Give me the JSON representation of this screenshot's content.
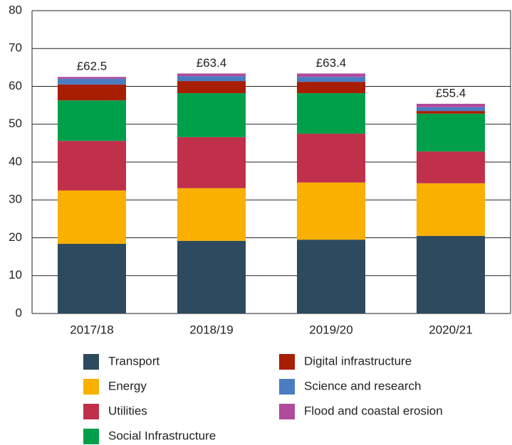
{
  "chart_data": {
    "type": "stacked_bar",
    "categories": [
      "2017/18",
      "2018/19",
      "2019/20",
      "2020/21"
    ],
    "series": [
      {
        "name": "Transport",
        "color": "#2d4a5e",
        "values": [
          18.4,
          19.2,
          19.5,
          20.5
        ]
      },
      {
        "name": "Energy",
        "color": "#f9b000",
        "values": [
          14.1,
          13.9,
          15.1,
          13.9
        ]
      },
      {
        "name": "Utilities",
        "color": "#c1304a",
        "values": [
          13.1,
          13.5,
          12.9,
          8.4
        ]
      },
      {
        "name": "Social Infrastructure",
        "color": "#00a04b",
        "values": [
          10.7,
          11.6,
          10.7,
          10.0
        ]
      },
      {
        "name": "Digital infrastructure",
        "color": "#a81e00",
        "values": [
          4.2,
          3.2,
          3.0,
          0.7
        ]
      },
      {
        "name": "Science and research",
        "color": "#4a7cc2",
        "values": [
          1.5,
          1.3,
          1.3,
          1.0
        ]
      },
      {
        "name": "Flood and coastal erosion",
        "color": "#b04a9d",
        "values": [
          0.5,
          0.7,
          0.9,
          0.9
        ]
      }
    ],
    "totals": [
      62.5,
      63.4,
      63.4,
      55.4
    ],
    "total_labels": [
      "£62.5",
      "£63.4",
      "£63.4",
      "£55.4"
    ],
    "ylim": [
      0,
      80
    ],
    "yticks": [
      0,
      10,
      20,
      30,
      40,
      50,
      60,
      70,
      80
    ],
    "grid": true
  }
}
